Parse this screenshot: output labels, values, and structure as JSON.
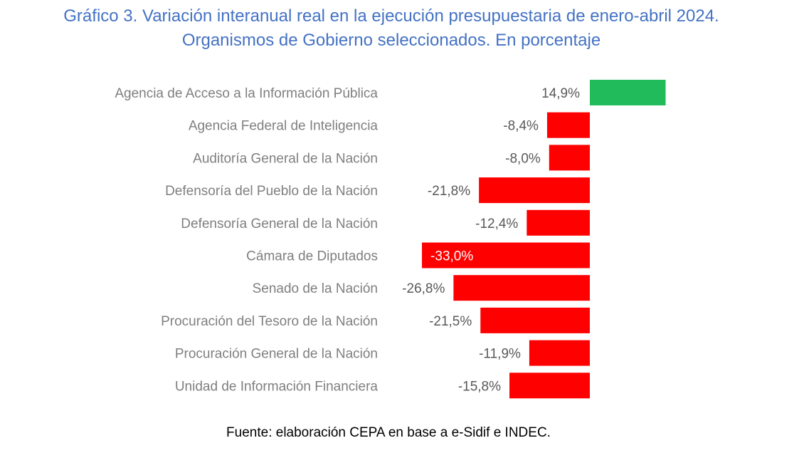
{
  "title_line1": "Gráfico 3. Variación interanual real en la ejecución presupuestaria de enero-abril 2024.",
  "title_line2": "Organismos de Gobierno seleccionados. En porcentaje",
  "footer": "Fuente: elaboración CEPA en base a e-Sidif e INDEC.",
  "colors": {
    "positive": "#22BB5B",
    "negative": "#FF0000",
    "title": "#4472C4"
  },
  "chart_data": {
    "type": "bar",
    "orientation": "horizontal",
    "title": "Gráfico 3. Variación interanual real en la ejecución presupuestaria de enero-abril 2024. Organismos de Gobierno seleccionados. En porcentaje",
    "categories": [
      "Agencia de Acceso a la Información Pública",
      "Agencia Federal de Inteligencia",
      "Auditoría General de la Nación",
      "Defensoría del Pueblo de la Nación",
      "Defensoría General de la Nación",
      "Cámara de Diputados",
      "Senado de la Nación",
      "Procuración del Tesoro de la Nación",
      "Procuración General de la Nación",
      "Unidad de Información Financiera"
    ],
    "values": [
      14.9,
      -8.4,
      -8.0,
      -21.8,
      -12.4,
      -33.0,
      -26.8,
      -21.5,
      -11.9,
      -15.8
    ],
    "value_labels": [
      "14,9%",
      "-8,4%",
      "-8,0%",
      "-21,8%",
      "-12,4%",
      "-33,0%",
      "-26,8%",
      "-21,5%",
      "-11,9%",
      "-15,8%"
    ],
    "xlabel": "",
    "ylabel": "",
    "grid": false,
    "legend": "none"
  }
}
